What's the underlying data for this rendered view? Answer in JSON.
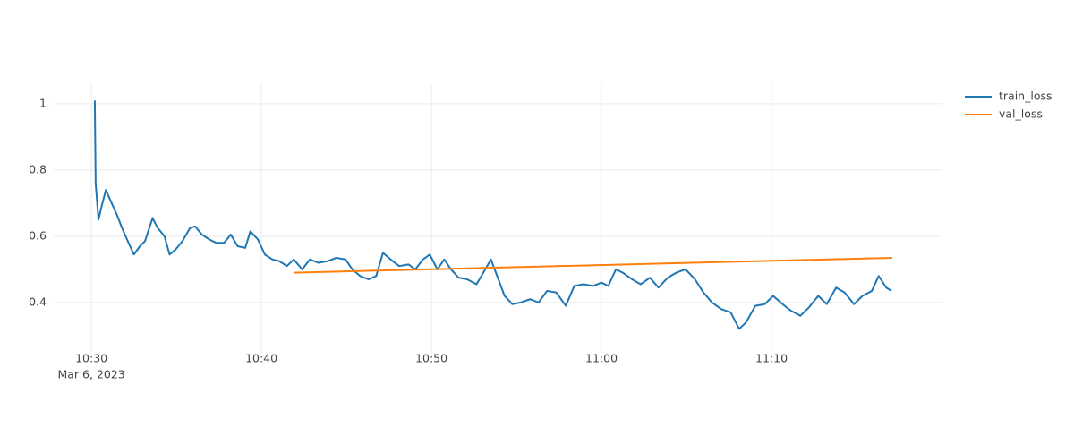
{
  "chart_data": {
    "type": "line",
    "xlim": [
      "2023-03-06 10:27:47",
      "2023-03-06 11:20:00"
    ],
    "xticks": [
      {
        "value": "2023-03-06 10:30",
        "label": "10:30"
      },
      {
        "value": "2023-03-06 10:40",
        "label": "10:40"
      },
      {
        "value": "2023-03-06 10:50",
        "label": "10:50"
      },
      {
        "value": "2023-03-06 11:00",
        "label": "11:00"
      },
      {
        "value": "2023-03-06 11:10",
        "label": "11:10"
      }
    ],
    "x_date_label": "Mar 6, 2023",
    "ylim": [
      0.251,
      1.062
    ],
    "yticks": [
      0.4,
      0.6,
      0.8,
      1
    ],
    "grid": true,
    "legend": "top-right",
    "series": [
      {
        "name": "train_loss",
        "color": "#1f77b4",
        "x": [
          "2023-03-06 10:30:12",
          "2023-03-06 10:30:15",
          "2023-03-06 10:30:25",
          "2023-03-06 10:30:36",
          "2023-03-06 10:30:51",
          "2023-03-06 10:31:09",
          "2023-03-06 10:31:30",
          "2023-03-06 10:31:48",
          "2023-03-06 10:32:06",
          "2023-03-06 10:32:30",
          "2023-03-06 10:32:51",
          "2023-03-06 10:33:09",
          "2023-03-06 10:33:36",
          "2023-03-06 10:33:54",
          "2023-03-06 10:34:18",
          "2023-03-06 10:34:36",
          "2023-03-06 10:34:57",
          "2023-03-06 10:35:21",
          "2023-03-06 10:35:48",
          "2023-03-06 10:36:06",
          "2023-03-06 10:36:30",
          "2023-03-06 10:36:57",
          "2023-03-06 10:37:21",
          "2023-03-06 10:37:48",
          "2023-03-06 10:38:12",
          "2023-03-06 10:38:36",
          "2023-03-06 10:39:03",
          "2023-03-06 10:39:21",
          "2023-03-06 10:39:48",
          "2023-03-06 10:40:12",
          "2023-03-06 10:40:39",
          "2023-03-06 10:41:03",
          "2023-03-06 10:41:30",
          "2023-03-06 10:41:54",
          "2023-03-06 10:42:24",
          "2023-03-06 10:42:51",
          "2023-03-06 10:43:21",
          "2023-03-06 10:43:54",
          "2023-03-06 10:44:24",
          "2023-03-06 10:44:57",
          "2023-03-06 10:45:21",
          "2023-03-06 10:45:48",
          "2023-03-06 10:46:18",
          "2023-03-06 10:46:45",
          "2023-03-06 10:47:09",
          "2023-03-06 10:47:36",
          "2023-03-06 10:48:06",
          "2023-03-06 10:48:39",
          "2023-03-06 10:49:03",
          "2023-03-06 10:49:30",
          "2023-03-06 10:49:54",
          "2023-03-06 10:50:21",
          "2023-03-06 10:50:45",
          "2023-03-06 10:51:09",
          "2023-03-06 10:51:36",
          "2023-03-06 10:52:06",
          "2023-03-06 10:52:39",
          "2023-03-06 10:53:03",
          "2023-03-06 10:53:30",
          "2023-03-06 10:53:54",
          "2023-03-06 10:54:18",
          "2023-03-06 10:54:45",
          "2023-03-06 10:55:15",
          "2023-03-06 10:55:48",
          "2023-03-06 10:56:18",
          "2023-03-06 10:56:48",
          "2023-03-06 10:57:21",
          "2023-03-06 10:57:54",
          "2023-03-06 10:58:24",
          "2023-03-06 10:58:57",
          "2023-03-06 10:59:30",
          "2023-03-06 11:00:00",
          "2023-03-06 11:00:24",
          "2023-03-06 11:00:51",
          "2023-03-06 11:01:15",
          "2023-03-06 11:01:48",
          "2023-03-06 11:02:18",
          "2023-03-06 11:02:51",
          "2023-03-06 11:03:21",
          "2023-03-06 11:03:54",
          "2023-03-06 11:04:24",
          "2023-03-06 11:04:57",
          "2023-03-06 11:05:30",
          "2023-03-06 11:06:00",
          "2023-03-06 11:06:30",
          "2023-03-06 11:07:03",
          "2023-03-06 11:07:36",
          "2023-03-06 11:08:06",
          "2023-03-06 11:08:30",
          "2023-03-06 11:09:03",
          "2023-03-06 11:09:36",
          "2023-03-06 11:10:06",
          "2023-03-06 11:10:39",
          "2023-03-06 11:11:09",
          "2023-03-06 11:11:42",
          "2023-03-06 11:12:12",
          "2023-03-06 11:12:45",
          "2023-03-06 11:13:15",
          "2023-03-06 11:13:48",
          "2023-03-06 11:14:18",
          "2023-03-06 11:14:51",
          "2023-03-06 11:15:21",
          "2023-03-06 11:15:54",
          "2023-03-06 11:16:18",
          "2023-03-06 11:16:45",
          "2023-03-06 11:17:03"
        ],
        "values": [
          1.01,
          0.76,
          0.65,
          0.69,
          0.74,
          0.705,
          0.665,
          0.625,
          0.59,
          0.545,
          0.57,
          0.585,
          0.655,
          0.625,
          0.6,
          0.545,
          0.56,
          0.585,
          0.625,
          0.63,
          0.605,
          0.59,
          0.58,
          0.58,
          0.605,
          0.57,
          0.565,
          0.615,
          0.59,
          0.545,
          0.53,
          0.525,
          0.51,
          0.53,
          0.5,
          0.53,
          0.52,
          0.525,
          0.535,
          0.53,
          0.5,
          0.48,
          0.47,
          0.48,
          0.55,
          0.53,
          0.51,
          0.515,
          0.5,
          0.53,
          0.545,
          0.5,
          0.53,
          0.5,
          0.475,
          0.47,
          0.455,
          0.49,
          0.53,
          0.475,
          0.42,
          0.395,
          0.4,
          0.41,
          0.4,
          0.435,
          0.43,
          0.39,
          0.45,
          0.455,
          0.45,
          0.46,
          0.45,
          0.5,
          0.49,
          0.47,
          0.455,
          0.475,
          0.445,
          0.475,
          0.49,
          0.5,
          0.47,
          0.43,
          0.4,
          0.38,
          0.37,
          0.32,
          0.34,
          0.39,
          0.395,
          0.42,
          0.395,
          0.375,
          0.36,
          0.385,
          0.42,
          0.395,
          0.445,
          0.43,
          0.395,
          0.42,
          0.435,
          0.48,
          0.445,
          0.435
        ]
      },
      {
        "name": "val_loss",
        "color": "#ff7f0e",
        "x": [
          "2023-03-06 10:41:54",
          "2023-03-06 11:17:06"
        ],
        "values": [
          0.49,
          0.535
        ]
      }
    ]
  }
}
